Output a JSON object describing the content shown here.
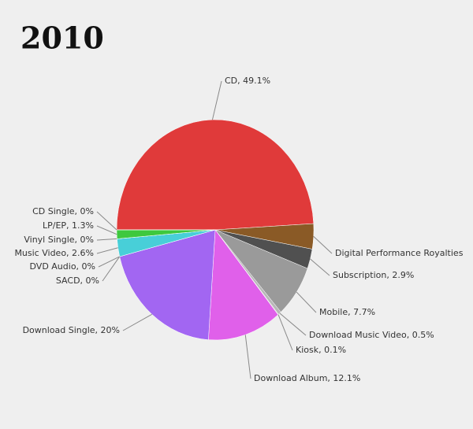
{
  "chart_data": {
    "type": "pie",
    "title": "2010",
    "values": [
      49.1,
      3.7,
      2.9,
      7.7,
      0.5,
      0.1,
      12.1,
      20,
      0,
      0,
      2.6,
      0,
      1.3,
      0
    ],
    "value_labels": [
      "CD, 49.1%",
      "Digital Performance Royalties",
      "Subscription, 2.9%",
      "Mobile, 7.7%",
      "Download Music Video, 0.5%",
      "Kiosk, 0.1%",
      "Download Album, 12.1%",
      "Download Single, 20%",
      "SACD, 0%",
      "DVD Audio, 0%",
      "Music Video, 2.6%",
      "Vinyl Single, 0%",
      "LP/EP, 1.3%",
      "CD Single, 0%"
    ],
    "colors": [
      "#e03a3a",
      "#8a5a26",
      "#505050",
      "#9a9a9a",
      "#b8b8b8",
      "#d0d0d0",
      "#e060ea",
      "#a266f2",
      "#3a3ab8",
      "#3a3ab8",
      "#48cfd8",
      "#5a9a5a",
      "#3ec83e",
      "#2aa02a"
    ]
  }
}
